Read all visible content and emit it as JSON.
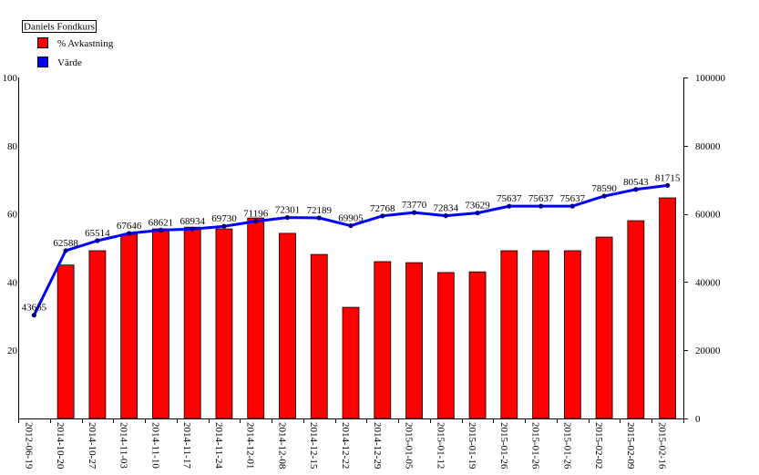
{
  "chart_data": {
    "type": "bar",
    "title": "Daniels Fondkurs",
    "categories": [
      "2012-06-19",
      "2014-10-20",
      "2014-10-27",
      "2014-11-03",
      "2014-11-10",
      "2014-11-17",
      "2014-11-24",
      "2014-12-01",
      "2014-12-08",
      "2014-12-15",
      "2014-12-22",
      "2014-12-29",
      "2015-01-05",
      "2015-01-12",
      "2015-01-19",
      "2015-01-26",
      "2015-01-26",
      "2015-01-26",
      "2015-02-02",
      "2015-02-09",
      "2015-02-16"
    ],
    "series": [
      {
        "name": "% Avkastning",
        "type": "bar",
        "axis": "left",
        "color": "#ff0000",
        "values": [
          0,
          45.0,
          49.2,
          54.0,
          55.6,
          56.1,
          55.6,
          58.8,
          54.3,
          48.1,
          32.6,
          46.0,
          45.7,
          42.8,
          43.0,
          49.2,
          49.2,
          49.2,
          53.2,
          58.0,
          64.7
        ]
      },
      {
        "name": "Värde",
        "type": "line",
        "axis": "right",
        "color": "#0000ff",
        "marker_color": "#000080",
        "values": [
          43665,
          62588,
          65514,
          67646,
          68621,
          68934,
          69730,
          71196,
          72301,
          72189,
          69905,
          72768,
          73770,
          72834,
          73629,
          75637,
          75637,
          75637,
          78590,
          80543,
          81715
        ]
      }
    ],
    "y_left": {
      "range": [
        0,
        100
      ],
      "ticks": [
        100,
        80,
        60,
        40,
        20
      ]
    },
    "y_right": {
      "range": [
        0,
        100000
      ],
      "ticks": [
        100000,
        80000,
        60000,
        40000,
        20000,
        0
      ]
    },
    "legend": "top-left",
    "grid": false
  }
}
